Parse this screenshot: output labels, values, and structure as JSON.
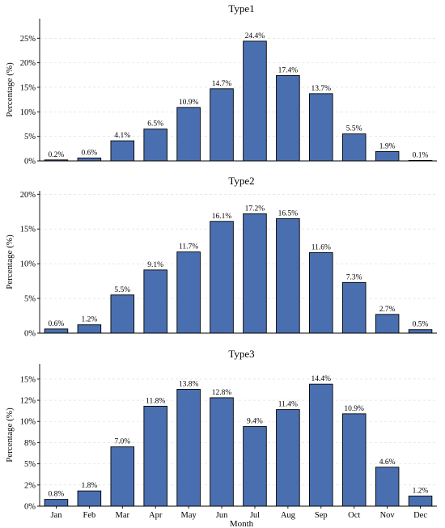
{
  "chart_data": [
    {
      "type": "bar",
      "title": "Type1",
      "ylabel": "Percentage (%)",
      "xlabel": "",
      "categories": [
        "Jan",
        "Feb",
        "Mar",
        "Apr",
        "May",
        "Jun",
        "Jul",
        "Aug",
        "Sep",
        "Oct",
        "Nov",
        "Dec"
      ],
      "values": [
        0.2,
        0.6,
        4.1,
        6.5,
        10.9,
        14.7,
        24.4,
        17.4,
        13.7,
        5.5,
        1.9,
        0.1
      ],
      "data_labels": [
        "0.2%",
        "0.6%",
        "4.1%",
        "6.5%",
        "10.9%",
        "14.7%",
        "24.4%",
        "17.4%",
        "13.7%",
        "5.5%",
        "1.9%",
        "0.1%"
      ],
      "ylim": [
        0,
        29
      ],
      "yticks": [
        0,
        5,
        10,
        15,
        20,
        25
      ],
      "ytick_labels": [
        "0%",
        "5%",
        "10%",
        "15%",
        "20%",
        "25%"
      ],
      "grid": true,
      "show_xticks": false
    },
    {
      "type": "bar",
      "title": "Type2",
      "ylabel": "Percentage (%)",
      "xlabel": "",
      "categories": [
        "Jan",
        "Feb",
        "Mar",
        "Apr",
        "May",
        "Jun",
        "Jul",
        "Aug",
        "Sep",
        "Oct",
        "Nov",
        "Dec"
      ],
      "values": [
        0.6,
        1.2,
        5.5,
        9.1,
        11.7,
        16.1,
        17.2,
        16.5,
        11.6,
        7.3,
        2.7,
        0.5
      ],
      "data_labels": [
        "0.6%",
        "1.2%",
        "5.5%",
        "9.1%",
        "11.7%",
        "16.1%",
        "17.2%",
        "16.5%",
        "11.6%",
        "7.3%",
        "2.7%",
        "0.5%"
      ],
      "ylim": [
        0,
        20.5
      ],
      "yticks": [
        0,
        5,
        10,
        15,
        20
      ],
      "ytick_labels": [
        "0%",
        "5%",
        "10%",
        "15%",
        "20%"
      ],
      "grid": true,
      "show_xticks": false
    },
    {
      "type": "bar",
      "title": "Type3",
      "ylabel": "Percentage (%)",
      "xlabel": "Month",
      "categories": [
        "Jan",
        "Feb",
        "Mar",
        "Apr",
        "May",
        "Jun",
        "Jul",
        "Aug",
        "Sep",
        "Oct",
        "Nov",
        "Dec"
      ],
      "values": [
        0.8,
        1.8,
        7.0,
        11.8,
        13.8,
        12.8,
        9.4,
        11.4,
        14.4,
        10.9,
        4.6,
        1.2
      ],
      "data_labels": [
        "0.8%",
        "1.8%",
        "7.0%",
        "11.8%",
        "13.8%",
        "12.8%",
        "9.4%",
        "11.4%",
        "14.4%",
        "10.9%",
        "4.6%",
        "1.2%"
      ],
      "ylim": [
        0,
        16.8
      ],
      "yticks": [
        0,
        2.5,
        5,
        7.5,
        10,
        12.5,
        15
      ],
      "ytick_labels": [
        "0%",
        "2%",
        "5%",
        "8%",
        "10%",
        "12%",
        "15%"
      ],
      "grid": true,
      "show_xticks": true
    }
  ],
  "colors": {
    "bar": "#4a6fb0",
    "edge": "#000000",
    "grid": "#d9d9d9"
  }
}
